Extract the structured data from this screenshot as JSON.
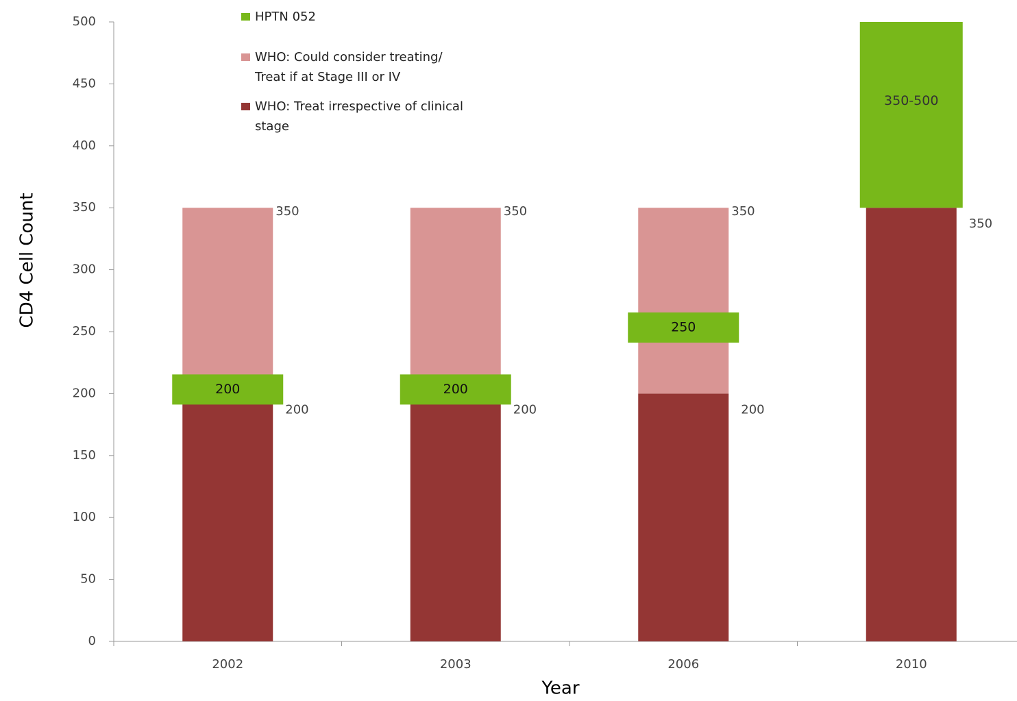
{
  "chart_data": {
    "type": "bar",
    "y_label": "CD4 Cell Count",
    "x_label": "Year",
    "categories": [
      "2002",
      "2003",
      "2006",
      "2010"
    ],
    "ylim": [
      0,
      500
    ],
    "yticks": [
      0,
      50,
      100,
      150,
      200,
      250,
      300,
      350,
      400,
      450,
      500
    ],
    "series": [
      {
        "name": "WHO: Treat irrespective of clinical stage",
        "color": "#943634",
        "values": [
          200,
          200,
          200,
          350
        ]
      },
      {
        "name": "WHO: Could consider treating/ Treat if at Stage III or IV",
        "color": "#d99594",
        "values": [
          150,
          150,
          150,
          null
        ]
      },
      {
        "name": "HPTN 052",
        "color": "#78b81a",
        "values": [
          200,
          200,
          250,
          500
        ],
        "low": [
          null,
          null,
          null,
          350
        ],
        "value_labels": [
          "200",
          "200",
          "250",
          "350-500"
        ]
      }
    ],
    "totals": [
      350,
      350,
      350,
      null
    ]
  }
}
